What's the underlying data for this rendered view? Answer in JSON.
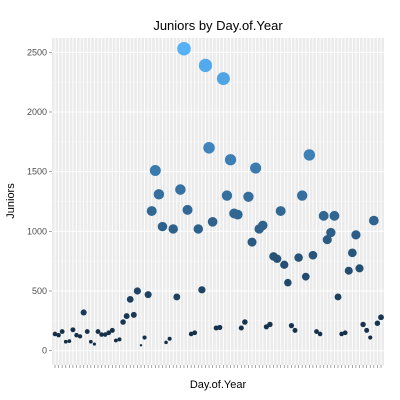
{
  "chart_data": {
    "type": "scatter",
    "title": "Juniors by Day.of.Year",
    "xlabel": "Day.of.Year",
    "ylabel": "Juniors",
    "y_ticks": [
      "0",
      "500",
      "1000",
      "1500",
      "2000",
      "2500"
    ],
    "ylim": [
      -120,
      2620
    ],
    "x_tick_labels_shown": false,
    "grid": true,
    "legend": "none",
    "color_scale": {
      "low": "#132B43",
      "high": "#56B1F7"
    },
    "size_scale": "value",
    "x_category_count": 92,
    "points": [
      {
        "x": 1,
        "y": 140
      },
      {
        "x": 2,
        "y": 130
      },
      {
        "x": 3,
        "y": 160
      },
      {
        "x": 4,
        "y": 75
      },
      {
        "x": 5,
        "y": 80
      },
      {
        "x": 6,
        "y": 175
      },
      {
        "x": 7,
        "y": 130
      },
      {
        "x": 8,
        "y": 120
      },
      {
        "x": 9,
        "y": 320
      },
      {
        "x": 10,
        "y": 160
      },
      {
        "x": 11,
        "y": 75
      },
      {
        "x": 12,
        "y": 55
      },
      {
        "x": 13,
        "y": 160
      },
      {
        "x": 14,
        "y": 135
      },
      {
        "x": 15,
        "y": 135
      },
      {
        "x": 16,
        "y": 150
      },
      {
        "x": 17,
        "y": 170
      },
      {
        "x": 18,
        "y": 85
      },
      {
        "x": 19,
        "y": 95
      },
      {
        "x": 20,
        "y": 240
      },
      {
        "x": 21,
        "y": 290
      },
      {
        "x": 22,
        "y": 430
      },
      {
        "x": 23,
        "y": 300
      },
      {
        "x": 24,
        "y": 500
      },
      {
        "x": 25,
        "y": 45
      },
      {
        "x": 26,
        "y": 110
      },
      {
        "x": 27,
        "y": 470
      },
      {
        "x": 28,
        "y": 1170
      },
      {
        "x": 29,
        "y": 1510
      },
      {
        "x": 30,
        "y": 1310
      },
      {
        "x": 31,
        "y": 1040
      },
      {
        "x": 32,
        "y": 70
      },
      {
        "x": 33,
        "y": 100
      },
      {
        "x": 34,
        "y": 1020
      },
      {
        "x": 35,
        "y": 450
      },
      {
        "x": 36,
        "y": 1350
      },
      {
        "x": 37,
        "y": 2530
      },
      {
        "x": 38,
        "y": 1180
      },
      {
        "x": 39,
        "y": 140
      },
      {
        "x": 40,
        "y": 150
      },
      {
        "x": 41,
        "y": 1020
      },
      {
        "x": 42,
        "y": 510
      },
      {
        "x": 43,
        "y": 2390
      },
      {
        "x": 44,
        "y": 1700
      },
      {
        "x": 45,
        "y": 1080
      },
      {
        "x": 46,
        "y": 190
      },
      {
        "x": 47,
        "y": 195
      },
      {
        "x": 48,
        "y": 2280
      },
      {
        "x": 49,
        "y": 1300
      },
      {
        "x": 50,
        "y": 1600
      },
      {
        "x": 51,
        "y": 1150
      },
      {
        "x": 52,
        "y": 1140
      },
      {
        "x": 53,
        "y": 190
      },
      {
        "x": 54,
        "y": 240
      },
      {
        "x": 55,
        "y": 1290
      },
      {
        "x": 56,
        "y": 910
      },
      {
        "x": 57,
        "y": 1530
      },
      {
        "x": 58,
        "y": 1020
      },
      {
        "x": 59,
        "y": 1050
      },
      {
        "x": 60,
        "y": 200
      },
      {
        "x": 61,
        "y": 220
      },
      {
        "x": 62,
        "y": 790
      },
      {
        "x": 63,
        "y": 770
      },
      {
        "x": 64,
        "y": 1170
      },
      {
        "x": 65,
        "y": 720
      },
      {
        "x": 66,
        "y": 570
      },
      {
        "x": 67,
        "y": 210
      },
      {
        "x": 68,
        "y": 170
      },
      {
        "x": 69,
        "y": 780
      },
      {
        "x": 70,
        "y": 1300
      },
      {
        "x": 71,
        "y": 620
      },
      {
        "x": 72,
        "y": 1640
      },
      {
        "x": 73,
        "y": 800
      },
      {
        "x": 74,
        "y": 160
      },
      {
        "x": 75,
        "y": 140
      },
      {
        "x": 76,
        "y": 1130
      },
      {
        "x": 77,
        "y": 930
      },
      {
        "x": 78,
        "y": 990
      },
      {
        "x": 79,
        "y": 1130
      },
      {
        "x": 80,
        "y": 450
      },
      {
        "x": 81,
        "y": 140
      },
      {
        "x": 82,
        "y": 150
      },
      {
        "x": 83,
        "y": 670
      },
      {
        "x": 84,
        "y": 820
      },
      {
        "x": 85,
        "y": 970
      },
      {
        "x": 86,
        "y": 690
      },
      {
        "x": 87,
        "y": 220
      },
      {
        "x": 88,
        "y": 170
      },
      {
        "x": 89,
        "y": 110
      },
      {
        "x": 90,
        "y": 1090
      },
      {
        "x": 91,
        "y": 230
      },
      {
        "x": 92,
        "y": 280
      }
    ]
  },
  "colors": {
    "panel_background": "#EBEBEB",
    "grid_major": "#FFFFFF",
    "tick_label": "#4d4d4d",
    "title": "#000000"
  }
}
